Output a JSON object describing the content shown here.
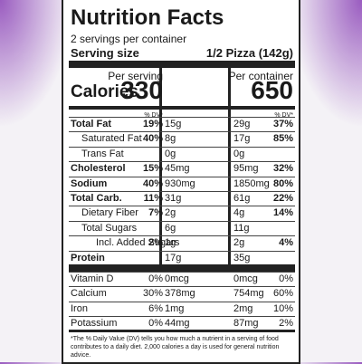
{
  "header": {
    "title": "Nutrition Facts",
    "servings": "2 servings per container",
    "serving_size_label": "Serving size",
    "serving_size": "1/2 Pizza (142g)"
  },
  "columns": [
    "Per serving",
    "Per container"
  ],
  "calories": {
    "label": "Calories",
    "values": [
      "330",
      "650"
    ]
  },
  "dv_header": [
    "% DV*",
    "% DV*"
  ],
  "rows": [
    {
      "name": "Total Fat",
      "amount": "15g",
      "dv": "19%",
      "amount2": "29g",
      "dv2": "37%"
    },
    {
      "name": "Saturated Fat",
      "amount": "8g",
      "dv": "40%",
      "amount2": "17g",
      "dv2": "85%"
    },
    {
      "name": "Trans Fat",
      "amount": "0g",
      "amount2": "0g"
    },
    {
      "name": "Cholesterol",
      "amount": "45mg",
      "dv": "15%",
      "amount2": "95mg",
      "dv2": "32%"
    },
    {
      "name": "Sodium",
      "amount": "930mg",
      "dv": "40%",
      "amount2": "1850mg",
      "dv2": "80%"
    },
    {
      "name": "Total Carb.",
      "amount": "31g",
      "dv": "11%",
      "amount2": "61g",
      "dv2": "22%"
    },
    {
      "name": "Dietary Fiber",
      "amount": "2g",
      "dv": "7%",
      "amount2": "4g",
      "dv2": "14%"
    },
    {
      "name": "Total Sugars",
      "amount": "6g",
      "amount2": "11g"
    },
    {
      "name": "Incl. Added Sugars",
      "amount": "1g",
      "dv": "2%",
      "amount2": "2g",
      "dv2": "4%"
    },
    {
      "name": "Protein",
      "amount": "17g",
      "amount2": "35g"
    }
  ],
  "vitamins": [
    {
      "name": "Vitamin D",
      "amount": "0mcg",
      "dv": "0%",
      "amount2": "0mcg",
      "dv2": "0%"
    },
    {
      "name": "Calcium",
      "amount": "378mg",
      "dv": "30%",
      "amount2": "754mg",
      "dv2": "60%"
    },
    {
      "name": "Iron",
      "amount": "1mg",
      "dv": "6%",
      "amount2": "2mg",
      "dv2": "10%"
    },
    {
      "name": "Potassium",
      "amount": "44mg",
      "dv": "0%",
      "amount2": "87mg",
      "dv2": "2%"
    }
  ],
  "footnote": "*The % Daily Value (DV) tells you how much a nutrient in a serving of food contributes to a daily diet. 2,000 calories a day is used for general nutrition advice."
}
